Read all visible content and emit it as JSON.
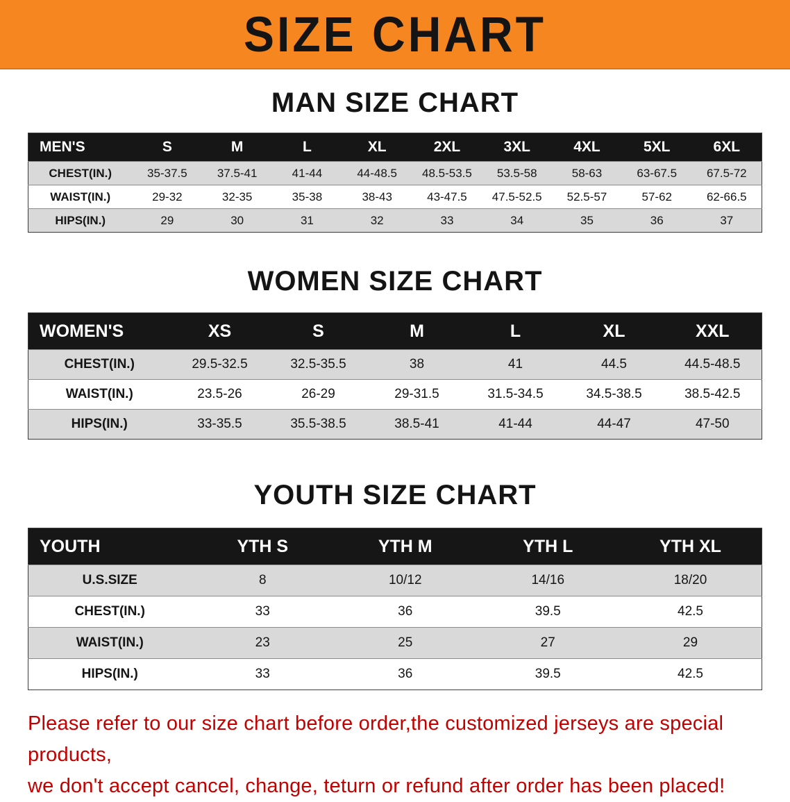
{
  "banner": {
    "title": "SIZE CHART"
  },
  "colors": {
    "banner_bg": "#F6861F",
    "table_header_bg": "#161616",
    "row_alt_bg": "#d9d9d9",
    "disclaimer_text": "#C20000"
  },
  "sections": [
    {
      "id": "men",
      "heading": "MAN SIZE CHART",
      "table": {
        "header": [
          "MEN'S",
          "S",
          "M",
          "L",
          "XL",
          "2XL",
          "3XL",
          "4XL",
          "5XL",
          "6XL"
        ],
        "rows": [
          [
            "CHEST(IN.)",
            "35-37.5",
            "37.5-41",
            "41-44",
            "44-48.5",
            "48.5-53.5",
            "53.5-58",
            "58-63",
            "63-67.5",
            "67.5-72"
          ],
          [
            "WAIST(IN.)",
            "29-32",
            "32-35",
            "35-38",
            "38-43",
            "43-47.5",
            "47.5-52.5",
            "52.5-57",
            "57-62",
            "62-66.5"
          ],
          [
            "HIPS(IN.)",
            "29",
            "30",
            "31",
            "32",
            "33",
            "34",
            "35",
            "36",
            "37"
          ]
        ]
      }
    },
    {
      "id": "women",
      "heading": "WOMEN SIZE CHART",
      "table": {
        "header": [
          "WOMEN'S",
          "XS",
          "S",
          "M",
          "L",
          "XL",
          "XXL"
        ],
        "rows": [
          [
            "CHEST(IN.)",
            "29.5-32.5",
            "32.5-35.5",
            "38",
            "41",
            "44.5",
            "44.5-48.5"
          ],
          [
            "WAIST(IN.)",
            "23.5-26",
            "26-29",
            "29-31.5",
            "31.5-34.5",
            "34.5-38.5",
            "38.5-42.5"
          ],
          [
            "HIPS(IN.)",
            "33-35.5",
            "35.5-38.5",
            "38.5-41",
            "41-44",
            "44-47",
            "47-50"
          ]
        ]
      }
    },
    {
      "id": "youth",
      "heading": "YOUTH SIZE CHART",
      "table": {
        "header": [
          "YOUTH",
          "YTH S",
          "YTH M",
          "YTH L",
          "YTH XL"
        ],
        "rows": [
          [
            "U.S.SIZE",
            "8",
            "10/12",
            "14/16",
            "18/20"
          ],
          [
            "CHEST(IN.)",
            "33",
            "36",
            "39.5",
            "42.5"
          ],
          [
            "WAIST(IN.)",
            "23",
            "25",
            "27",
            "29"
          ],
          [
            "HIPS(IN.)",
            "33",
            "36",
            "39.5",
            "42.5"
          ]
        ]
      }
    }
  ],
  "disclaimer": {
    "line1": "Please refer to our size chart before order,the customized jerseys are special products,",
    "line2": "we don't accept cancel, change, teturn or refund after order has been placed!"
  }
}
